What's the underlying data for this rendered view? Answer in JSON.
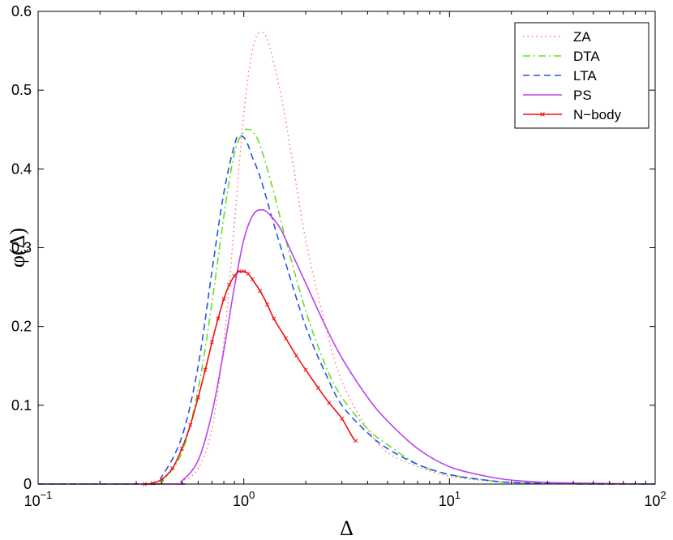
{
  "chart_data": {
    "type": "line",
    "xlabel": "Δ",
    "ylabel": "φ(Δ)",
    "xscale": "log",
    "xlim": [
      0.1,
      100
    ],
    "ylim": [
      0,
      0.6
    ],
    "grid": false,
    "legend_position": "top-right",
    "x_ticks": [
      {
        "value": 0.1,
        "base": "10",
        "exp": "−1"
      },
      {
        "value": 1,
        "base": "10",
        "exp": "0"
      },
      {
        "value": 10,
        "base": "10",
        "exp": "1"
      },
      {
        "value": 100,
        "base": "10",
        "exp": "2"
      }
    ],
    "y_ticks": [
      "0",
      "0.1",
      "0.2",
      "0.3",
      "0.4",
      "0.5",
      "0.6"
    ],
    "series": [
      {
        "name": "ZA",
        "color": "#ff6b6b",
        "style": "dotted",
        "x": [
          0.1,
          0.4,
          0.5,
          0.6,
          0.7,
          0.8,
          0.9,
          1.0,
          1.1,
          1.2,
          1.3,
          1.5,
          1.7,
          2.0,
          2.5,
          3.0,
          4.0,
          5.0,
          7.0,
          10,
          15,
          20,
          30,
          50,
          100
        ],
        "y": [
          0,
          0,
          0.004,
          0.02,
          0.07,
          0.18,
          0.33,
          0.47,
          0.55,
          0.573,
          0.565,
          0.5,
          0.42,
          0.31,
          0.2,
          0.13,
          0.07,
          0.04,
          0.022,
          0.01,
          0.004,
          0.002,
          0.001,
          0,
          0
        ]
      },
      {
        "name": "DTA",
        "color": "#66dd22",
        "style": "dashdot",
        "x": [
          0.1,
          0.35,
          0.4,
          0.5,
          0.6,
          0.7,
          0.8,
          0.9,
          1.0,
          1.05,
          1.1,
          1.2,
          1.4,
          1.6,
          2.0,
          2.5,
          3.0,
          4.0,
          5.0,
          7.0,
          10,
          15,
          20,
          30,
          50,
          100
        ],
        "y": [
          0,
          0,
          0.004,
          0.04,
          0.12,
          0.23,
          0.34,
          0.42,
          0.448,
          0.45,
          0.448,
          0.43,
          0.37,
          0.31,
          0.22,
          0.15,
          0.11,
          0.07,
          0.05,
          0.025,
          0.012,
          0.005,
          0.002,
          0.001,
          0,
          0
        ]
      },
      {
        "name": "LTA",
        "color": "#2255ee",
        "style": "dashed",
        "x": [
          0.1,
          0.35,
          0.4,
          0.5,
          0.6,
          0.7,
          0.8,
          0.9,
          0.95,
          1.0,
          1.05,
          1.1,
          1.2,
          1.4,
          1.6,
          2.0,
          2.5,
          3.0,
          4.0,
          5.0,
          7.0,
          10,
          15,
          20,
          30,
          50,
          100
        ],
        "y": [
          0,
          0,
          0.01,
          0.06,
          0.15,
          0.27,
          0.37,
          0.43,
          0.442,
          0.44,
          0.43,
          0.415,
          0.39,
          0.33,
          0.28,
          0.2,
          0.14,
          0.1,
          0.065,
          0.045,
          0.025,
          0.012,
          0.005,
          0.002,
          0.001,
          0,
          0
        ]
      },
      {
        "name": "PS",
        "color": "#bb44ee",
        "style": "solid",
        "x": [
          0.1,
          0.45,
          0.5,
          0.6,
          0.7,
          0.8,
          0.9,
          1.0,
          1.1,
          1.2,
          1.3,
          1.5,
          1.7,
          2.0,
          2.5,
          3.0,
          4.0,
          5.0,
          7.0,
          10,
          15,
          20,
          30,
          50,
          100
        ],
        "y": [
          0,
          0,
          0.004,
          0.03,
          0.09,
          0.17,
          0.25,
          0.31,
          0.34,
          0.348,
          0.345,
          0.325,
          0.295,
          0.255,
          0.2,
          0.16,
          0.11,
          0.08,
          0.045,
          0.022,
          0.01,
          0.005,
          0.002,
          0.001,
          0
        ]
      },
      {
        "name": "N−body",
        "color": "#ee1111",
        "style": "solid-x",
        "x": [
          0.33,
          0.36,
          0.4,
          0.45,
          0.5,
          0.55,
          0.6,
          0.65,
          0.7,
          0.75,
          0.8,
          0.85,
          0.9,
          0.95,
          1.0,
          1.05,
          1.1,
          1.2,
          1.3,
          1.4,
          1.6,
          1.8,
          2.0,
          2.3,
          2.6,
          3.0,
          3.5
        ],
        "y": [
          0,
          0.001,
          0.006,
          0.02,
          0.045,
          0.075,
          0.11,
          0.145,
          0.18,
          0.21,
          0.235,
          0.253,
          0.264,
          0.27,
          0.27,
          0.267,
          0.26,
          0.245,
          0.228,
          0.21,
          0.185,
          0.163,
          0.145,
          0.122,
          0.103,
          0.083,
          0.055
        ]
      }
    ]
  }
}
